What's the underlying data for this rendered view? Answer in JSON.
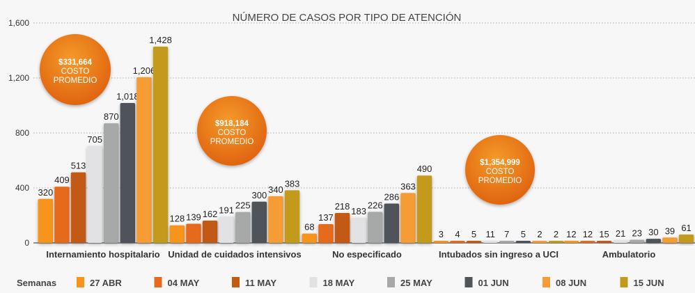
{
  "chart_data": {
    "type": "bar",
    "title": "NÚMERO DE CASOS POR TIPO DE ATENCIÓN",
    "xlabel": "",
    "ylabel": "",
    "ylim": [
      0,
      1600
    ],
    "yticks": [
      0,
      400,
      800,
      1200,
      1600
    ],
    "ytick_labels": [
      "0",
      "400",
      "800",
      "1,200",
      "1,600"
    ],
    "grid": true,
    "legend_title": "Semanas",
    "legend_position": "bottom",
    "categories": [
      "Internamiento hospitalario",
      "Unidad de cuidados intensivos",
      "No especificado",
      "Intubados sin ingreso a UCI",
      "Ambulatorio"
    ],
    "series": [
      {
        "name": "27 ABR",
        "color": "#f7941d",
        "values": [
          320,
          128,
          68,
          3,
          12
        ]
      },
      {
        "name": "04 MAY",
        "color": "#e66a1c",
        "values": [
          409,
          139,
          137,
          4,
          12
        ]
      },
      {
        "name": "11 MAY",
        "color": "#c25a12",
        "values": [
          513,
          162,
          218,
          5,
          15
        ]
      },
      {
        "name": "18 MAY",
        "color": "#e2e2e4",
        "values": [
          705,
          191,
          183,
          11,
          21
        ]
      },
      {
        "name": "25 MAY",
        "color": "#a7a9a9",
        "values": [
          870,
          225,
          226,
          7,
          23
        ]
      },
      {
        "name": "01 JUN",
        "color": "#4f535a",
        "values": [
          1018,
          300,
          286,
          5,
          30
        ]
      },
      {
        "name": "08 JUN",
        "color": "#f59c36",
        "values": [
          1206,
          340,
          363,
          2,
          39
        ]
      },
      {
        "name": "15 JUN",
        "color": "#c49a1d",
        "values": [
          1428,
          383,
          490,
          2,
          61
        ]
      }
    ],
    "value_labels": [
      [
        "320",
        "128",
        "68",
        "3",
        "12"
      ],
      [
        "409",
        "139",
        "137",
        "4",
        "12"
      ],
      [
        "513",
        "162",
        "218",
        "5",
        "15"
      ],
      [
        "705",
        "191",
        "183",
        "11",
        "21"
      ],
      [
        "870",
        "225",
        "226",
        "7",
        "23"
      ],
      [
        "1,018",
        "300",
        "286",
        "5",
        "30"
      ],
      [
        "1,206",
        "340",
        "363",
        "2",
        "39"
      ],
      [
        "1,428",
        "383",
        "490",
        "2",
        "61"
      ]
    ],
    "annotations": [
      {
        "amount": "$331,664",
        "line1": "COSTO",
        "line2": "PROMEDIO",
        "category": "Internamiento hospitalario"
      },
      {
        "amount": "$918,184",
        "line1": "COSTO",
        "line2": "PROMEDIO",
        "category": "Unidad de cuidados intensivos"
      },
      {
        "amount": "$1,354,999",
        "line1": "COSTO",
        "line2": "PROMEDIO",
        "category": "Intubados sin ingreso a UCI"
      }
    ]
  }
}
